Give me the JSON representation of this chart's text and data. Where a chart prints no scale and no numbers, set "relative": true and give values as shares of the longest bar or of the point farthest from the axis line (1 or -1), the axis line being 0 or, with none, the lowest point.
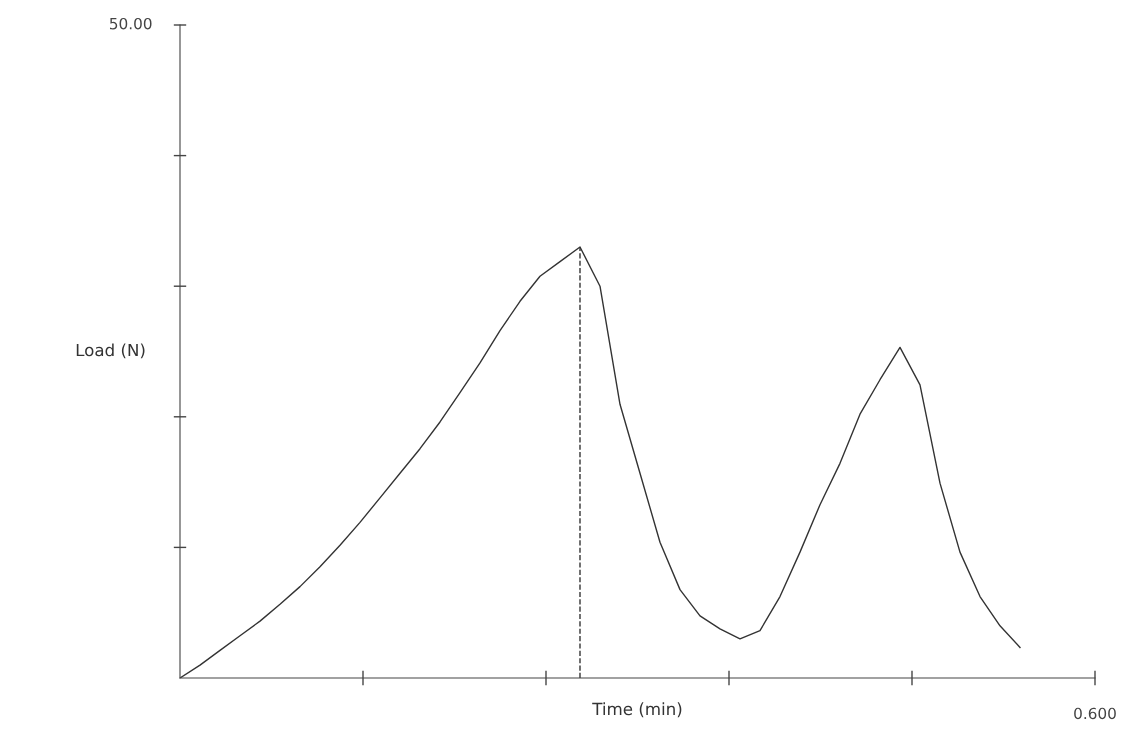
{
  "chart_data": {
    "type": "line",
    "xlabel": "Time (min)",
    "ylabel": "Load (N)",
    "relative": true,
    "categories": [
      null,
      null,
      null,
      null,
      null,
      null,
      null,
      null,
      null,
      null,
      null,
      null,
      null,
      null,
      null,
      null,
      null,
      null,
      null,
      null,
      null,
      null,
      null,
      null,
      null,
      null,
      null,
      null,
      null,
      null,
      null,
      null,
      null,
      null,
      null,
      null,
      null,
      null,
      null,
      null,
      null,
      null,
      null
    ],
    "series": [
      {
        "color": "#333333",
        "values": [
          0,
          0.03,
          0.064,
          0.098,
          0.132,
          0.171,
          0.212,
          0.258,
          0.308,
          0.361,
          0.418,
          0.475,
          0.532,
          0.594,
          0.662,
          0.731,
          0.806,
          0.874,
          0.932,
          0.966,
          1,
          0.909,
          0.635,
          0.475,
          0.315,
          0.205,
          0.144,
          0.114,
          0.091,
          0.11,
          0.189,
          0.292,
          0.402,
          0.498,
          0.612,
          0.692,
          0.767,
          0.68,
          0.452,
          0.292,
          0.189,
          0.121,
          0.071
        ]
      }
    ],
    "annotations": [
      "50.00",
      "0.600"
    ],
    "grid": false,
    "marker": "none",
    "line_style": "solid"
  }
}
